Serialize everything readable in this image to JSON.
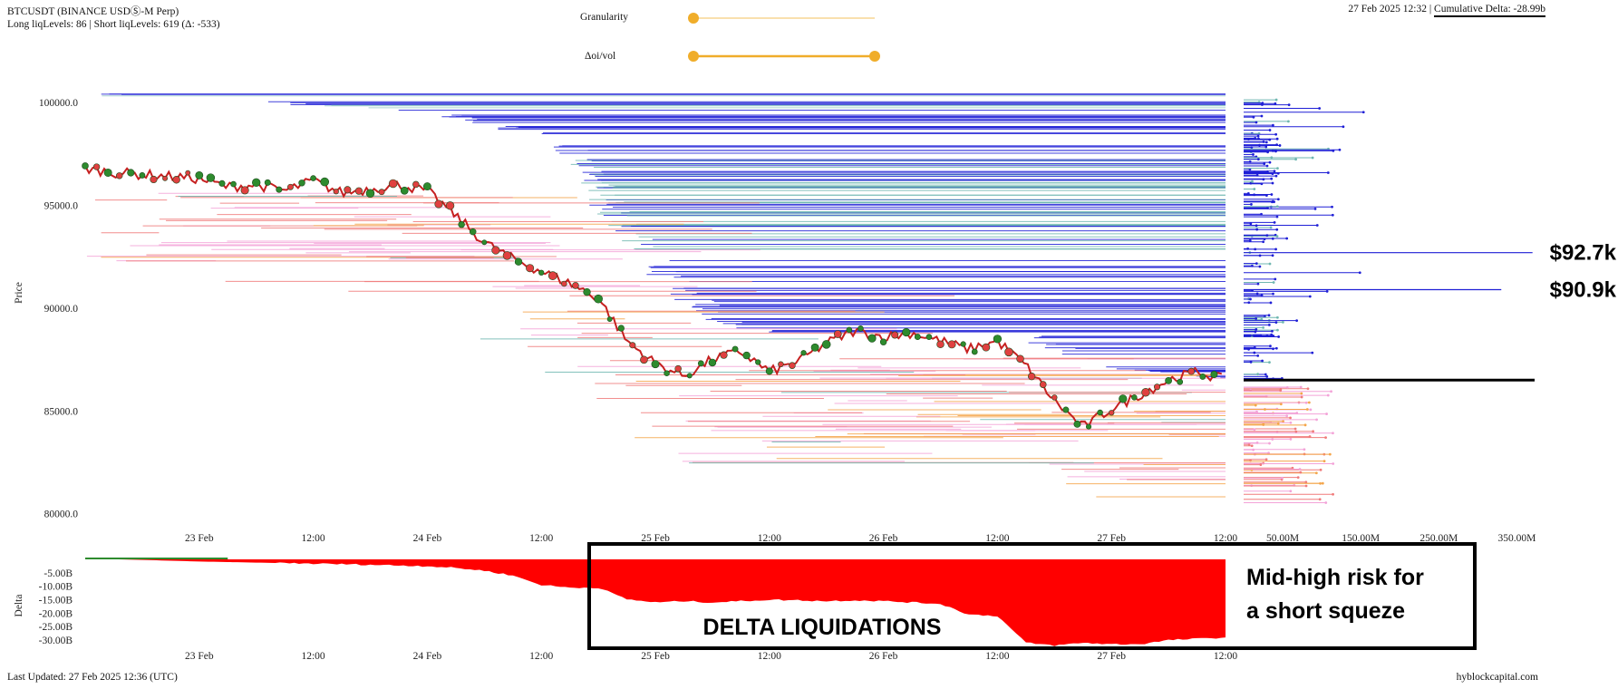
{
  "header": {
    "symbol": "BTCUSDT (BINANCE USDⓈ-M Perp)",
    "liq_levels": "Long liqLevels: 86 | Short liqLevels: 619 (Δ: -533)",
    "timestamp": "27 Feb 2025 12:32 | ",
    "cumulative_delta": "Cumulative Delta: -28.99b",
    "granularity_label": "Granularity",
    "oi_vol_label": "Δoi/vol"
  },
  "sliders": {
    "granularity": {
      "value": 0.0
    },
    "oi_vol": {
      "low": 0.0,
      "high": 1.0
    }
  },
  "footer": {
    "last_updated": "Last Updated: 27 Feb 2025 12:36 (UTC)",
    "brand": "hyblockcapital.com"
  },
  "colors": {
    "short_liq": "#1f1fd6",
    "mid_liq": "#6fb7b0",
    "long_liq": "#f07b7b",
    "long_light": "#f3a3d8",
    "orange": "#f4a54a",
    "delta_fill": "#ff0000",
    "slider": "#f0ad2a"
  },
  "chart_data": [
    {
      "type": "line",
      "name": "price-chart",
      "ylabel": "Price",
      "yticks": [
        "100000.0",
        "95000.0",
        "90000.0",
        "85000.0",
        "80000.0"
      ],
      "ylim": [
        79500,
        100800
      ],
      "xticks": [
        "23 Feb",
        "12:00",
        "24 Feb",
        "12:00",
        "25 Feb",
        "12:00",
        "26 Feb",
        "12:00",
        "27 Feb",
        "12:00"
      ],
      "x_hours": [
        0,
        6,
        12,
        18,
        24,
        30,
        36,
        42,
        48,
        54,
        60,
        66,
        72,
        78,
        84,
        90,
        96,
        102,
        108,
        114,
        120
      ],
      "x_hours_comment": "",
      "price": [
        96800,
        96600,
        96500,
        96400,
        96300,
        95900,
        96000,
        95700,
        96200,
        95600,
        95800,
        96000,
        95700,
        94500,
        93200,
        92400,
        91800,
        91200,
        90500,
        88400,
        87300,
        86700,
        87500,
        87900,
        86900,
        87400,
        88300,
        88900,
        88600,
        88800,
        88400,
        88000,
        88400,
        87200,
        85500,
        84200,
        85100,
        85800,
        86500,
        86900,
        86500
      ],
      "price_x_hours": [
        0,
        3,
        6,
        9,
        12,
        15,
        18,
        21,
        24,
        27,
        30,
        33,
        36,
        39,
        42,
        45,
        48,
        51,
        54,
        57,
        60,
        63,
        66,
        69,
        72,
        75,
        78,
        81,
        84,
        87,
        90,
        93,
        96,
        99,
        102,
        105,
        108,
        111,
        114,
        117,
        120
      ],
      "short_liq_min_price": [
        100200,
        100200,
        99800,
        99400,
        98200,
        96300,
        94200,
        92800,
        91000,
        89000,
        88800,
        89000,
        88800,
        87200,
        86500
      ],
      "short_liq_x_hours": [
        0,
        12,
        24,
        36,
        48,
        51,
        54,
        57,
        60,
        66,
        72,
        84,
        96,
        105,
        120
      ]
    },
    {
      "type": "bar",
      "name": "liquidation-volume-histogram",
      "xticks": [
        "50.00M",
        "150.00M",
        "250.00M",
        "350.00M"
      ],
      "xlim": [
        0,
        375
      ],
      "annotations": [
        "$92.7k",
        "$90.9k"
      ],
      "annotation_prices": [
        92700,
        90900
      ],
      "current_price_line": 86500
    },
    {
      "type": "area",
      "name": "delta-chart",
      "ylabel": "Delta",
      "yticks": [
        "-5.00B",
        "-10.00B",
        "-15.00B",
        "-20.00B",
        "-25.00B",
        "-30.00B"
      ],
      "ylim": [
        -33,
        0
      ],
      "xticks": [
        "23 Feb",
        "12:00",
        "24 Feb",
        "12:00",
        "25 Feb",
        "12:00",
        "26 Feb",
        "12:00",
        "27 Feb",
        "12:00"
      ],
      "x_hours": [
        0,
        6,
        12,
        18,
        24,
        30,
        36,
        39,
        42,
        45,
        48,
        51,
        54,
        57,
        60,
        63,
        66,
        69,
        72,
        75,
        78,
        81,
        84,
        87,
        90,
        93,
        96,
        99,
        102,
        105,
        108,
        111,
        114,
        117,
        120
      ],
      "values": [
        0.3,
        -0.2,
        -0.8,
        -1.2,
        -1.6,
        -2.0,
        -2.5,
        -3.2,
        -4.2,
        -6.0,
        -9.5,
        -10.5,
        -10.5,
        -14.8,
        -16.0,
        -15.5,
        -16.0,
        -15.5,
        -15.0,
        -15.2,
        -15.5,
        -15.2,
        -15.5,
        -16.0,
        -16.5,
        -20.5,
        -21.0,
        -31.0,
        -32.0,
        -31.0,
        -31.5,
        -31.5,
        -30.0,
        -29.5,
        -29.0
      ],
      "annotation_box_label": "DELTA LIQUIDATIONS",
      "annotation_side_text": [
        "Mid-high risk for",
        "a short squeze"
      ]
    }
  ]
}
